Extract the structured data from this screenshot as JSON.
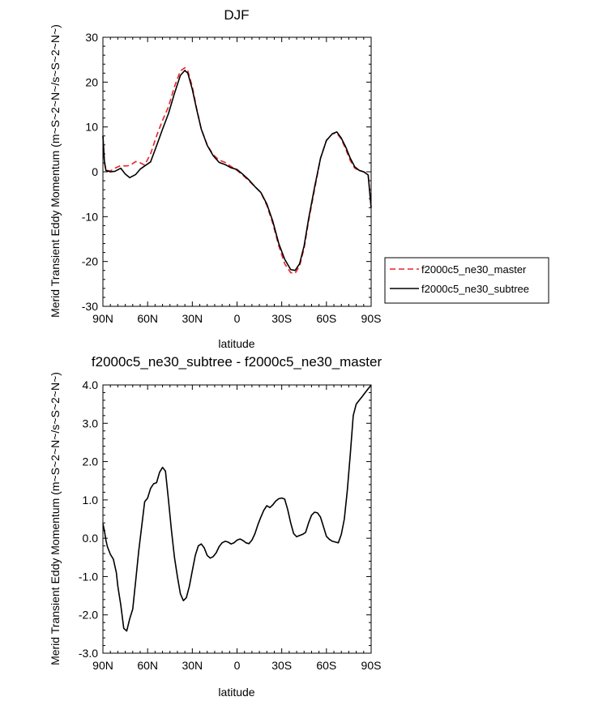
{
  "chart_data": [
    {
      "type": "line",
      "title": "DJF",
      "xlabel": "latitude",
      "ylabel": "Merid Transient Eddy Momentum (m~S~2~N~/s~S~2~N~)",
      "xlim": [
        90,
        -90
      ],
      "ylim": [
        -30,
        30
      ],
      "x_ticks": [
        90,
        60,
        30,
        0,
        -30,
        -60,
        -90
      ],
      "x_tick_labels": [
        "90N",
        "60N",
        "30N",
        "0",
        "30S",
        "60S",
        "90S"
      ],
      "y_ticks": [
        -30,
        -20,
        -10,
        0,
        10,
        20,
        30
      ],
      "y_tick_labels": [
        "-30",
        "-20",
        "-10",
        "0",
        "10",
        "20",
        "30"
      ],
      "legend_position": "right",
      "series": [
        {
          "name": "f2000c5_ne30_master",
          "color": "#e8232a",
          "dash": true,
          "x": [
            90,
            89,
            88,
            85,
            82,
            78,
            75,
            72,
            68,
            65,
            62,
            58,
            54,
            50,
            46,
            42,
            38,
            35,
            33,
            30,
            27,
            24,
            20,
            16,
            12,
            8,
            4,
            0,
            -4,
            -8,
            -12,
            -16,
            -20,
            -24,
            -28,
            -32,
            -36,
            -39,
            -42,
            -45,
            -48,
            -52,
            -56,
            -60,
            -64,
            -67,
            -70,
            -73,
            -76,
            -79,
            -82,
            -85,
            -88,
            -90
          ],
          "y": [
            8,
            2,
            0.3,
            0.2,
            0.8,
            1.4,
            1.3,
            1.4,
            2.3,
            2.0,
            1.5,
            4,
            8,
            11.5,
            14.5,
            19,
            22.5,
            23.2,
            22.5,
            19,
            14,
            9.5,
            6,
            3.8,
            2.6,
            2.1,
            1.2,
            0.3,
            -0.8,
            -2.0,
            -3.3,
            -4.6,
            -7.5,
            -11.5,
            -16.5,
            -20.5,
            -22.5,
            -22.6,
            -21,
            -17,
            -11,
            -4,
            3,
            7,
            8.5,
            8.6,
            7.3,
            5,
            2.5,
            0.8,
            0.3,
            0,
            -0.5,
            -8
          ]
        },
        {
          "name": "f2000c5_ne30_subtree",
          "color": "#000000",
          "dash": false,
          "x": [
            90,
            89,
            88,
            85,
            82,
            78,
            75,
            72,
            68,
            65,
            62,
            58,
            54,
            50,
            46,
            42,
            38,
            35,
            33,
            30,
            27,
            24,
            20,
            16,
            12,
            8,
            4,
            0,
            -4,
            -8,
            -12,
            -16,
            -20,
            -24,
            -28,
            -32,
            -36,
            -39,
            -42,
            -45,
            -48,
            -52,
            -56,
            -60,
            -64,
            -67,
            -70,
            -73,
            -76,
            -79,
            -82,
            -85,
            -88,
            -90
          ],
          "y": [
            8,
            2.5,
            0.3,
            0,
            0.1,
            0.8,
            -0.5,
            -1.3,
            -0.6,
            0.6,
            1.3,
            2.2,
            5.8,
            9.5,
            13,
            17.5,
            21.5,
            22.6,
            22.0,
            18.4,
            13.8,
            9.5,
            5.9,
            3.6,
            2.1,
            1.6,
            0.9,
            0.5,
            -0.6,
            -1.8,
            -3.3,
            -4.6,
            -7.2,
            -11,
            -16,
            -19.5,
            -21.8,
            -22,
            -20.5,
            -16.5,
            -10.5,
            -3.5,
            3,
            7,
            8.5,
            8.9,
            7.5,
            5.5,
            3,
            1.1,
            0.3,
            0,
            -0.7,
            -8
          ]
        }
      ]
    },
    {
      "type": "line",
      "title": "f2000c5_ne30_subtree - f2000c5_ne30_master",
      "xlabel": "latitude",
      "ylabel": "Merid Transient Eddy Momentum (m~S~2~N~/s~S~2~N~)",
      "xlim": [
        90,
        -90
      ],
      "ylim": [
        -3.0,
        4.0
      ],
      "x_ticks": [
        90,
        60,
        30,
        0,
        -30,
        -60,
        -90
      ],
      "x_tick_labels": [
        "90N",
        "60N",
        "30N",
        "0",
        "30S",
        "60S",
        "90S"
      ],
      "y_ticks": [
        -3.0,
        -2.0,
        -1.0,
        0.0,
        1.0,
        2.0,
        3.0,
        4.0
      ],
      "y_tick_labels": [
        "-3.0",
        "-2.0",
        "-1.0",
        "0.0",
        "1.0",
        "2.0",
        "3.0",
        "4.0"
      ],
      "series": [
        {
          "name": "f2000c5_ne30_subtree - f2000c5_ne30_master",
          "color": "#000000",
          "dash": false,
          "x": [
            90,
            89,
            88,
            87,
            85,
            83,
            81,
            80,
            78,
            76,
            74,
            72,
            70,
            68,
            66,
            64,
            62,
            60,
            58,
            56,
            54,
            52,
            50,
            48,
            46,
            44,
            42,
            40,
            38,
            36,
            34,
            32,
            30,
            28,
            26,
            24,
            22,
            20,
            18,
            16,
            14,
            12,
            10,
            8,
            6,
            4,
            2,
            0,
            -2,
            -4,
            -6,
            -8,
            -10,
            -12,
            -14,
            -16,
            -18,
            -20,
            -22,
            -24,
            -26,
            -28,
            -30,
            -32,
            -34,
            -36,
            -38,
            -40,
            -42,
            -44,
            -46,
            -48,
            -50,
            -52,
            -54,
            -56,
            -58,
            -60,
            -62,
            -64,
            -66,
            -68,
            -70,
            -72,
            -74,
            -76,
            -78,
            -80,
            -82,
            -84,
            -86,
            -88,
            -89,
            -90
          ],
          "y": [
            0.38,
            0.2,
            -0.05,
            -0.22,
            -0.42,
            -0.55,
            -0.9,
            -1.25,
            -1.75,
            -2.35,
            -2.42,
            -2.1,
            -1.85,
            -1.1,
            -0.35,
            0.3,
            0.95,
            1.05,
            1.3,
            1.42,
            1.45,
            1.72,
            1.85,
            1.75,
            1.0,
            0.2,
            -0.5,
            -1.0,
            -1.45,
            -1.63,
            -1.55,
            -1.25,
            -0.85,
            -0.45,
            -0.2,
            -0.15,
            -0.25,
            -0.45,
            -0.52,
            -0.48,
            -0.38,
            -0.22,
            -0.12,
            -0.08,
            -0.1,
            -0.15,
            -0.12,
            -0.05,
            -0.02,
            -0.06,
            -0.12,
            -0.14,
            -0.05,
            0.12,
            0.35,
            0.55,
            0.73,
            0.85,
            0.8,
            0.87,
            0.97,
            1.03,
            1.05,
            1.02,
            0.75,
            0.4,
            0.12,
            0.04,
            0.07,
            0.1,
            0.15,
            0.4,
            0.6,
            0.68,
            0.66,
            0.55,
            0.3,
            0.05,
            -0.03,
            -0.08,
            -0.1,
            -0.12,
            0.1,
            0.5,
            1.25,
            2.2,
            3.2,
            3.5,
            3.6,
            3.7,
            3.8,
            3.9,
            3.95,
            4.0
          ]
        }
      ]
    }
  ]
}
